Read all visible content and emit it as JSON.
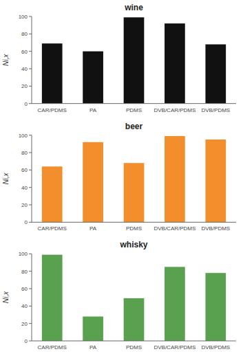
{
  "chart_data": [
    {
      "type": "bar",
      "title": "wine",
      "categories": [
        "CAR/PDMS",
        "PA",
        "PDMS",
        "DVB/CAR/PDMS",
        "DVB/PDMS"
      ],
      "values": [
        69,
        60,
        99,
        92,
        68
      ],
      "color": "#111111",
      "y_label": "Ni,x",
      "ylim": [
        0,
        100
      ],
      "yticks": [
        0,
        20,
        40,
        60,
        80,
        100
      ]
    },
    {
      "type": "bar",
      "title": "beer",
      "categories": [
        "CAR/PDMS",
        "PA",
        "PDMS",
        "DVB/CAR/PDMS",
        "DVB/PDMS"
      ],
      "values": [
        64,
        92,
        68,
        99,
        95
      ],
      "y_label": "Ni,x",
      "ylim": [
        0,
        100
      ],
      "yticks": [
        0,
        20,
        40,
        60,
        80,
        100
      ]
    },
    {
      "type": "bar",
      "title": "whisky",
      "categories": [
        "CAR/PDMS",
        "PA",
        "PDMS",
        "DVB/CAR/PDMS",
        "DVB/PDMS"
      ],
      "values": [
        99,
        28,
        49,
        85,
        78
      ],
      "y_label": "Ni,x",
      "ylim": [
        0,
        100
      ],
      "yticks": [
        0,
        20,
        40,
        60,
        80,
        100
      ]
    }
  ]
}
